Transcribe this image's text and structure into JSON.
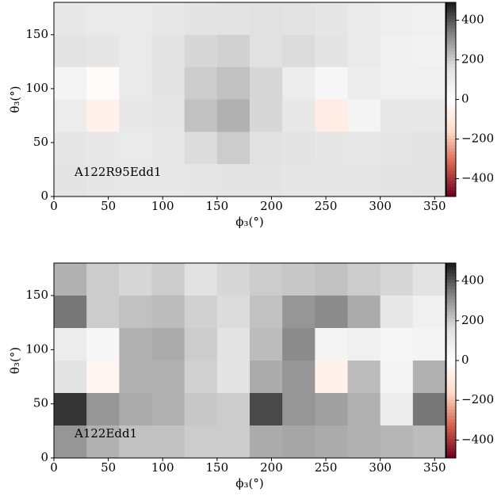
{
  "chart_data": [
    {
      "type": "heatmap",
      "annotation": "A122R95Edd1",
      "xlabel": "ϕ₃(°)",
      "ylabel": "θ₃(°)",
      "x": [
        15,
        45,
        75,
        105,
        135,
        165,
        195,
        225,
        255,
        285,
        315,
        345
      ],
      "y": [
        165,
        135,
        105,
        75,
        45,
        15
      ],
      "z": [
        [
          120,
          110,
          110,
          120,
          140,
          150,
          160,
          150,
          130,
          110,
          90,
          80
        ],
        [
          150,
          130,
          110,
          150,
          180,
          190,
          160,
          170,
          140,
          110,
          80,
          70
        ],
        [
          60,
          -20,
          110,
          140,
          200,
          220,
          180,
          100,
          40,
          100,
          80,
          80
        ],
        [
          100,
          -60,
          120,
          130,
          220,
          250,
          180,
          120,
          -80,
          60,
          120,
          120
        ],
        [
          130,
          120,
          110,
          120,
          170,
          200,
          160,
          140,
          130,
          120,
          130,
          140
        ],
        [
          140,
          130,
          120,
          120,
          130,
          140,
          140,
          130,
          130,
          130,
          140,
          150
        ]
      ],
      "xlim": [
        0,
        360
      ],
      "ylim": [
        0,
        180
      ],
      "xticks": [
        0,
        50,
        100,
        150,
        200,
        250,
        300,
        350
      ],
      "yticks": [
        0,
        50,
        100,
        150
      ],
      "zlim": [
        -490,
        490
      ],
      "zticks": [
        {
          "value": -400,
          "label": "−400"
        },
        {
          "value": -200,
          "label": "−200"
        },
        0,
        200,
        400
      ],
      "colormap": [
        "#67001f",
        "#d6604d",
        "#fddbc7",
        "#ffffff",
        "#e0e0e0",
        "#878787",
        "#1a1a1a"
      ]
    },
    {
      "type": "heatmap",
      "annotation": "A122Edd1",
      "xlabel": "ϕ₃(°)",
      "ylabel": "θ₃(°)",
      "x": [
        15,
        45,
        75,
        105,
        135,
        165,
        195,
        225,
        255,
        285,
        315,
        345
      ],
      "y": [
        165,
        135,
        105,
        75,
        45,
        15
      ],
      "z": [
        [
          250,
          200,
          180,
          200,
          160,
          180,
          200,
          210,
          220,
          200,
          180,
          150
        ],
        [
          350,
          200,
          220,
          230,
          190,
          170,
          220,
          300,
          320,
          260,
          120,
          80
        ],
        [
          100,
          40,
          250,
          260,
          200,
          150,
          230,
          320,
          60,
          80,
          40,
          60
        ],
        [
          150,
          -40,
          250,
          250,
          190,
          150,
          260,
          300,
          -60,
          230,
          60,
          250
        ],
        [
          450,
          300,
          260,
          250,
          210,
          200,
          420,
          300,
          280,
          250,
          100,
          350
        ],
        [
          300,
          250,
          220,
          220,
          200,
          200,
          260,
          270,
          260,
          250,
          240,
          230
        ]
      ],
      "xlim": [
        0,
        360
      ],
      "ylim": [
        0,
        180
      ],
      "xticks": [
        0,
        50,
        100,
        150,
        200,
        250,
        300,
        350
      ],
      "yticks": [
        0,
        50,
        100,
        150
      ],
      "zlim": [
        -490,
        490
      ],
      "zticks": [
        {
          "value": -400,
          "label": "−400"
        },
        {
          "value": -200,
          "label": "−200"
        },
        0,
        200,
        400
      ],
      "colormap": [
        "#67001f",
        "#d6604d",
        "#fddbc7",
        "#ffffff",
        "#e0e0e0",
        "#878787",
        "#1a1a1a"
      ]
    }
  ]
}
